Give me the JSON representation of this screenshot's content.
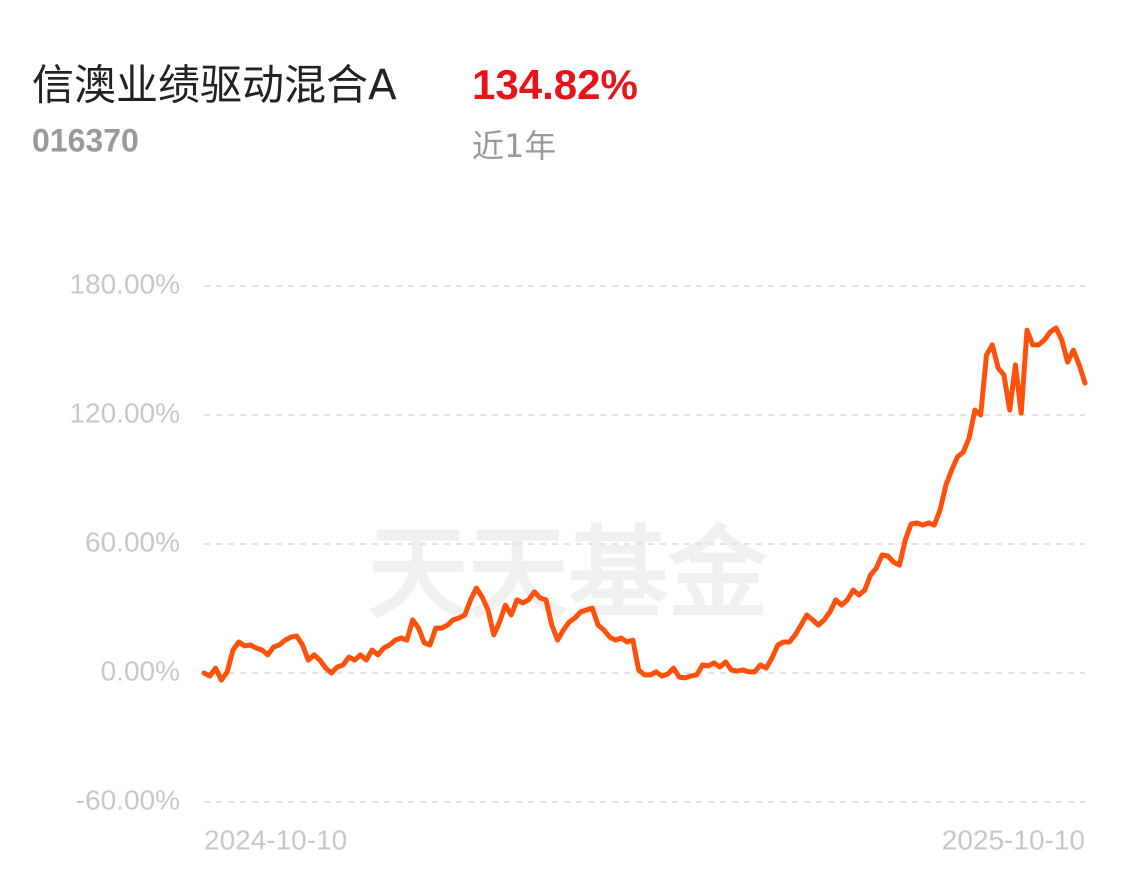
{
  "chart_data": {
    "type": "line",
    "title": "信澳业绩驱动混合A",
    "return": "134.82%",
    "code": "016370",
    "period": "近1年",
    "watermark": "天天基金",
    "x_axis_labels": [
      "2024-10-10",
      "2025-10-10"
    ],
    "series": [
      {
        "color": "#ff510c",
        "values": [
          0,
          -1.4,
          2.3,
          -3.3,
          0.5,
          10.7,
          14.4,
          12.6,
          13.0,
          11.6,
          10.7,
          8.4,
          12.1,
          13.0,
          15.3,
          16.7,
          17.2,
          13.0,
          6.0,
          8.4,
          6.0,
          2.3,
          0,
          2.8,
          3.7,
          7.4,
          6.0,
          8.4,
          6.0,
          10.7,
          8.4,
          11.6,
          13.0,
          15.3,
          16.3,
          15.3,
          24.7,
          20.9,
          14.0,
          13.0,
          20.9,
          20.9,
          22.3,
          24.7,
          25.6,
          27.0,
          34.0,
          39.5,
          35.3,
          29.3,
          17.7,
          23.7,
          31.6,
          27.0,
          34.0,
          32.6,
          34.0,
          37.7,
          34.9,
          34.0,
          22.3,
          15.3,
          20.0,
          23.7,
          25.6,
          28.4,
          29.3,
          30.2,
          22.3,
          20.0,
          16.7,
          15.3,
          16.3,
          14.4,
          15.3,
          1.4,
          -0.9,
          -0.9,
          0.5,
          -1.4,
          -0.5,
          2.3,
          -1.9,
          -2.3,
          -1.4,
          -0.9,
          3.7,
          3.3,
          4.7,
          2.8,
          5.1,
          1.4,
          0.9,
          1.4,
          0.5,
          0.5,
          3.7,
          2.3,
          7.0,
          13.0,
          14.4,
          14.4,
          17.7,
          22.3,
          27.0,
          24.7,
          22.3,
          24.7,
          28.4,
          34.0,
          31.6,
          34.0,
          38.6,
          36.3,
          38.6,
          45.6,
          48.8,
          54.9,
          54.4,
          51.6,
          50.2,
          61.9,
          69.3,
          69.8,
          68.8,
          69.8,
          68.8,
          75.8,
          87.4,
          94.4,
          100.5,
          102.8,
          109.3,
          122.3,
          120.0,
          147.9,
          152.6,
          141.9,
          138.6,
          122.3,
          143.3,
          120.9,
          159.5,
          152.6,
          152.6,
          154.9,
          158.6,
          160.5,
          154.9,
          144.6,
          150.2,
          143.3,
          134.82
        ]
      }
    ],
    "ylim": [
      -60,
      180
    ],
    "yticks": [
      {
        "value": -60,
        "label": "-60.00%"
      },
      {
        "value": 0,
        "label": "0.00%"
      },
      {
        "value": 60,
        "label": "60.00%"
      },
      {
        "value": 120,
        "label": "120.00%"
      },
      {
        "value": 180,
        "label": "180.00%"
      }
    ],
    "grid": true
  }
}
